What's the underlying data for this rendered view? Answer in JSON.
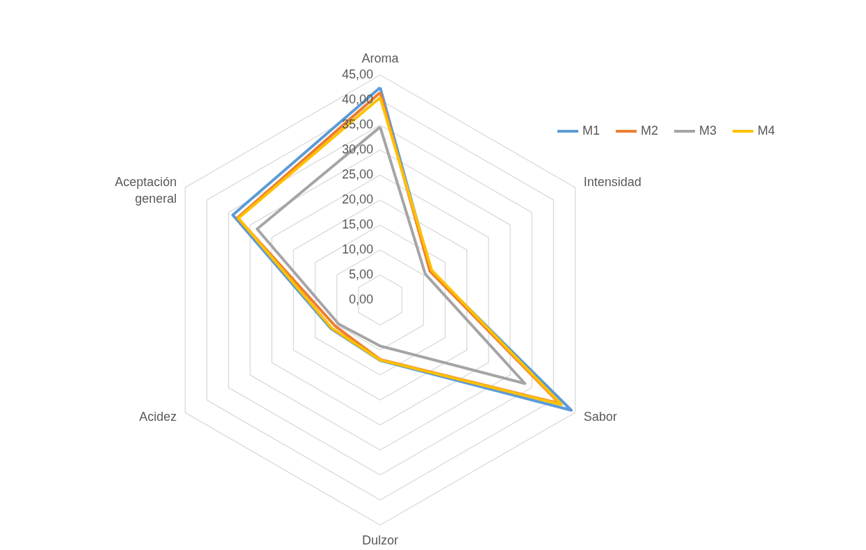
{
  "chart_data": {
    "type": "radar",
    "categories": [
      "Aroma",
      "Intensidad",
      "Sabor",
      "Dulzor",
      "Acidez",
      "Aceptación general"
    ],
    "series": [
      {
        "name": "M1",
        "color": "#5b9bd5",
        "values": [
          42.5,
          11.7,
          44.1,
          12.1,
          11.4,
          34.0
        ]
      },
      {
        "name": "M2",
        "color": "#ed7d31",
        "values": [
          41.5,
          11.5,
          41.4,
          11.9,
          10.4,
          32.9
        ]
      },
      {
        "name": "M3",
        "color": "#a5a5a5",
        "values": [
          34.6,
          10.4,
          33.4,
          9.2,
          9.6,
          28.4
        ]
      },
      {
        "name": "M4",
        "color": "#ffc000",
        "values": [
          40.5,
          11.9,
          41.8,
          12.0,
          11.2,
          32.7
        ]
      }
    ],
    "ylim": [
      0,
      45
    ],
    "yticks": [
      {
        "value": 0,
        "label": "0,00"
      },
      {
        "value": 5,
        "label": "5,00"
      },
      {
        "value": 10,
        "label": "10,00"
      },
      {
        "value": 15,
        "label": "15,00"
      },
      {
        "value": 20,
        "label": "20,00"
      },
      {
        "value": 25,
        "label": "25,00"
      },
      {
        "value": 30,
        "label": "30,00"
      },
      {
        "value": 35,
        "label": "35,00"
      },
      {
        "value": 40,
        "label": "40,00"
      },
      {
        "value": 45,
        "label": "45,00"
      }
    ],
    "grid": true,
    "legend": "right",
    "line_style": "solid"
  }
}
